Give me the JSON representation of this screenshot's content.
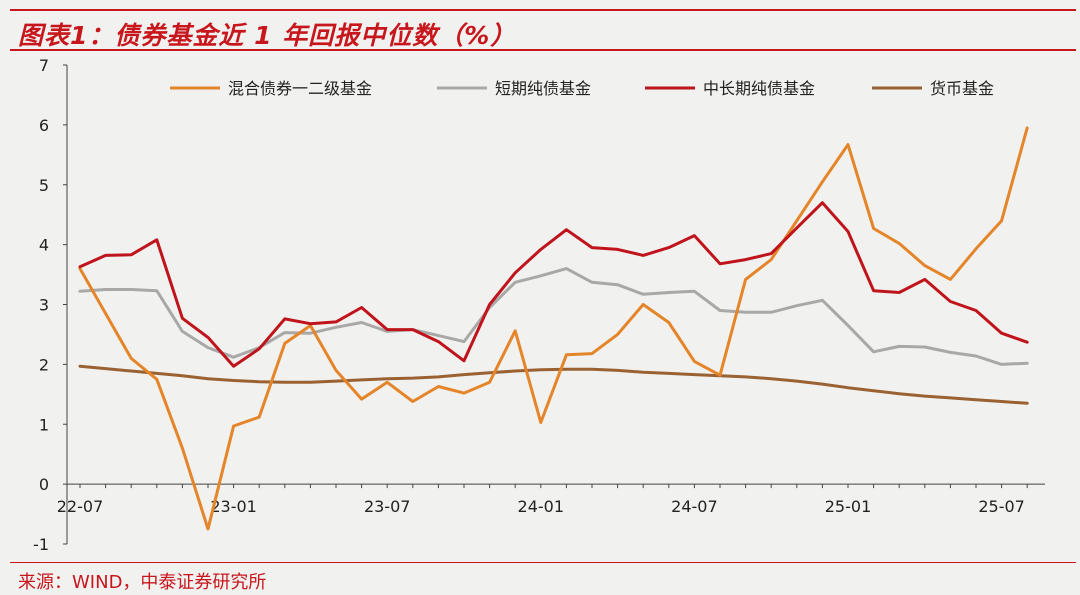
{
  "header": {
    "title": "图表1：债券基金近 1 年回报中位数（%）"
  },
  "footer": {
    "source": "来源：WIND，中泰证券研究所"
  },
  "colors": {
    "brand_red": "#c8161d",
    "series": [
      "#e5852a",
      "#a8a8a8",
      "#c0141c",
      "#9a6233"
    ]
  },
  "chart_data": {
    "type": "line",
    "ylim": [
      -1,
      7
    ],
    "yticks": [
      -1,
      0,
      1,
      2,
      3,
      4,
      5,
      6,
      7
    ],
    "xtick_labels": [
      "22-07",
      "23-01",
      "23-07",
      "24-01",
      "24-07",
      "25-01",
      "25-07"
    ],
    "x": [
      "22-07",
      "22-08",
      "22-09",
      "22-10",
      "22-11",
      "22-12",
      "23-01",
      "23-02",
      "23-03",
      "23-04",
      "23-05",
      "23-06",
      "23-07",
      "23-08",
      "23-09",
      "23-10",
      "23-11",
      "23-12",
      "24-01",
      "24-02",
      "24-03",
      "24-04",
      "24-05",
      "24-06",
      "24-07",
      "24-08",
      "24-09",
      "24-10",
      "24-11",
      "24-12",
      "25-01",
      "25-02",
      "25-03",
      "25-04",
      "25-05",
      "25-06",
      "25-07",
      "25-08"
    ],
    "legend_position": "top",
    "series": [
      {
        "name": "混合债券一二级基金",
        "values": [
          3.6,
          2.85,
          2.1,
          1.75,
          0.6,
          -0.75,
          0.97,
          1.12,
          2.35,
          2.65,
          1.9,
          1.42,
          1.7,
          1.38,
          1.63,
          1.52,
          1.7,
          2.56,
          1.03,
          2.16,
          2.18,
          2.5,
          3.0,
          2.7,
          2.05,
          1.82,
          3.42,
          3.75,
          4.4,
          5.05,
          5.67,
          4.27,
          4.02,
          3.65,
          3.42,
          3.93,
          4.4,
          5.95
        ]
      },
      {
        "name": "短期纯债基金",
        "values": [
          3.22,
          3.25,
          3.25,
          3.23,
          2.55,
          2.28,
          2.12,
          2.28,
          2.53,
          2.52,
          2.62,
          2.7,
          2.55,
          2.58,
          2.48,
          2.38,
          2.95,
          3.37,
          3.48,
          3.6,
          3.37,
          3.33,
          3.17,
          3.2,
          3.22,
          2.9,
          2.87,
          2.87,
          2.98,
          3.07,
          2.65,
          2.21,
          2.3,
          2.29,
          2.2,
          2.14,
          2.0,
          2.02
        ]
      },
      {
        "name": "中长期纯债基金",
        "values": [
          3.63,
          3.82,
          3.83,
          4.08,
          2.77,
          2.45,
          1.97,
          2.26,
          2.76,
          2.68,
          2.71,
          2.95,
          2.58,
          2.58,
          2.38,
          2.06,
          3.0,
          3.53,
          3.92,
          4.25,
          3.95,
          3.92,
          3.82,
          3.95,
          4.15,
          3.68,
          3.75,
          3.85,
          4.28,
          4.7,
          4.22,
          3.23,
          3.2,
          3.42,
          3.05,
          2.9,
          2.52,
          2.37
        ]
      },
      {
        "name": "货币基金",
        "values": [
          1.97,
          1.93,
          1.89,
          1.85,
          1.81,
          1.76,
          1.73,
          1.71,
          1.7,
          1.7,
          1.72,
          1.74,
          1.76,
          1.77,
          1.79,
          1.83,
          1.86,
          1.89,
          1.91,
          1.92,
          1.92,
          1.9,
          1.87,
          1.85,
          1.83,
          1.81,
          1.79,
          1.76,
          1.72,
          1.67,
          1.61,
          1.56,
          1.51,
          1.47,
          1.44,
          1.41,
          1.38,
          1.35
        ]
      }
    ]
  }
}
